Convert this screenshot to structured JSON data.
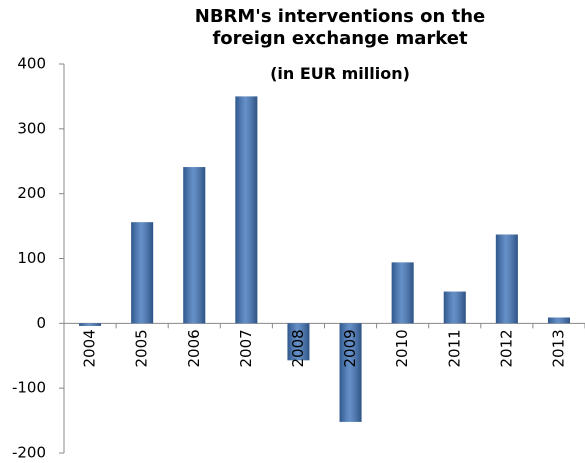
{
  "chart_data": {
    "type": "bar",
    "title": "NBRM's interventions on the foreign exchange market",
    "subtitle": "(in EUR million)",
    "categories": [
      "2004",
      "2005",
      "2006",
      "2007",
      "2008",
      "2009",
      "2010",
      "2011",
      "2012",
      "2013"
    ],
    "values": [
      -4,
      156,
      241,
      350,
      -57,
      -152,
      94,
      49,
      137,
      9
    ],
    "color": "#3f74ba",
    "ylim": [
      -200,
      400
    ],
    "yticks": [
      -200,
      -100,
      0,
      100,
      200,
      300,
      400
    ],
    "grid": false
  }
}
